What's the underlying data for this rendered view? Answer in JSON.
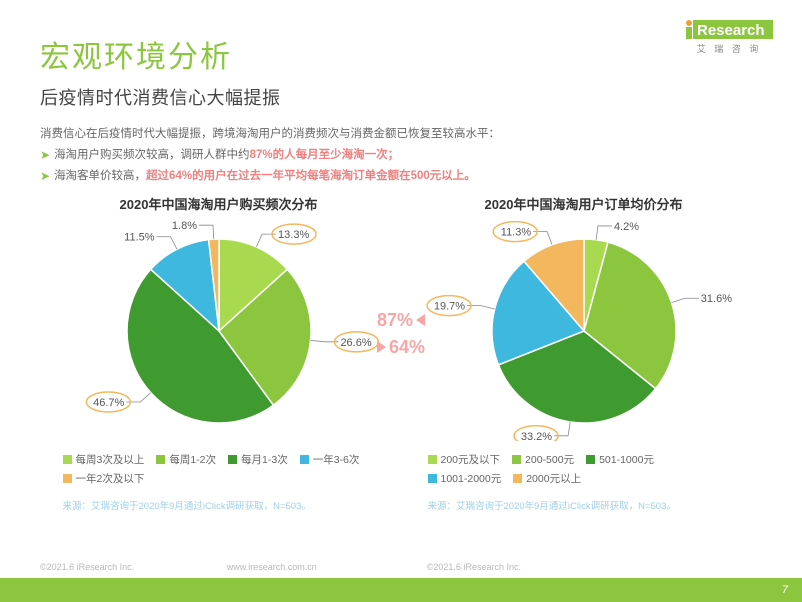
{
  "brand": {
    "name": "iResearch",
    "sub": "艾 瑞 咨 询",
    "accent": "#8cc63f",
    "logo_dot": "#f0a030"
  },
  "title": "宏观环境分析",
  "subtitle": "后疫情时代消费信心大幅提振",
  "desc_intro": "消费信心在后疫情时代大幅提振，跨境海淘用户的消费频次与消费金额已恢复至较高水平：",
  "bullets": [
    {
      "pre": "海淘用户购买频次较高，调研人群中约",
      "em": "87%的人每月至少海淘一次；",
      "post": ""
    },
    {
      "pre": "海淘客单价较高，",
      "em": "超过64%的用户在过去一年平均每笔海淘订单金额在500元以上。",
      "post": ""
    }
  ],
  "center": {
    "left_pct": "87%",
    "right_pct": "64%"
  },
  "chart_left": {
    "title": "2020年中国海淘用户购买频次分布",
    "type": "pie",
    "r": 92,
    "slices": [
      {
        "label": "每周3次及以上",
        "value": 13.3,
        "color": "#a9d94f",
        "text": "13.3%"
      },
      {
        "label": "每周1-2次",
        "value": 26.6,
        "color": "#8cc63f",
        "text": "26.6%"
      },
      {
        "label": "每月1-3次",
        "value": 46.7,
        "color": "#3f9b2f",
        "text": "46.7%"
      },
      {
        "label": "一年3-6次",
        "value": 11.5,
        "color": "#3fb8e0",
        "text": "11.5%"
      },
      {
        "label": "一年2次及以下",
        "value": 1.8,
        "color": "#f3b85d",
        "text": "1.8%"
      }
    ],
    "legend": [
      {
        "label": "每周3次及以上",
        "color": "#a9d94f"
      },
      {
        "label": "每周1-2次",
        "color": "#8cc63f"
      },
      {
        "label": "每月1-3次",
        "color": "#3f9b2f"
      },
      {
        "label": "一年3-6次",
        "color": "#3fb8e0"
      },
      {
        "label": "一年2次及以下",
        "color": "#f3b85d"
      }
    ],
    "annot_indices": [
      0,
      1,
      2
    ],
    "source": "来源：艾瑞咨询于2020年9月通过iClick调研获取，N=503。"
  },
  "chart_right": {
    "title": "2020年中国海淘用户订单均价分布",
    "type": "pie",
    "r": 92,
    "slices": [
      {
        "label": "200元及以下",
        "value": 4.2,
        "color": "#a9d94f",
        "text": "4.2%"
      },
      {
        "label": "200-500元",
        "value": 31.6,
        "color": "#8cc63f",
        "text": "31.6%"
      },
      {
        "label": "501-1000元",
        "value": 33.2,
        "color": "#3f9b2f",
        "text": "33.2%"
      },
      {
        "label": "1001-2000元",
        "value": 19.7,
        "color": "#3fb8e0",
        "text": "19.7%"
      },
      {
        "label": "2000元以上",
        "value": 11.3,
        "color": "#f3b85d",
        "text": "11.3%"
      }
    ],
    "legend": [
      {
        "label": "200元及以下",
        "color": "#a9d94f"
      },
      {
        "label": "200-500元",
        "color": "#8cc63f"
      },
      {
        "label": "501-1000元",
        "color": "#3f9b2f"
      },
      {
        "label": "1001-2000元",
        "color": "#3fb8e0"
      },
      {
        "label": "2000元以上",
        "color": "#f3b85d"
      }
    ],
    "annot_indices": [
      2,
      3,
      4
    ],
    "source": "来源：艾瑞咨询于2020年9月通过iClick调研获取，N=503。"
  },
  "url": "www.iresearch.com.cn",
  "copyright": "©2021.6 iResearch Inc.",
  "page": "7",
  "label_fontsize": 11,
  "label_color": "#555"
}
